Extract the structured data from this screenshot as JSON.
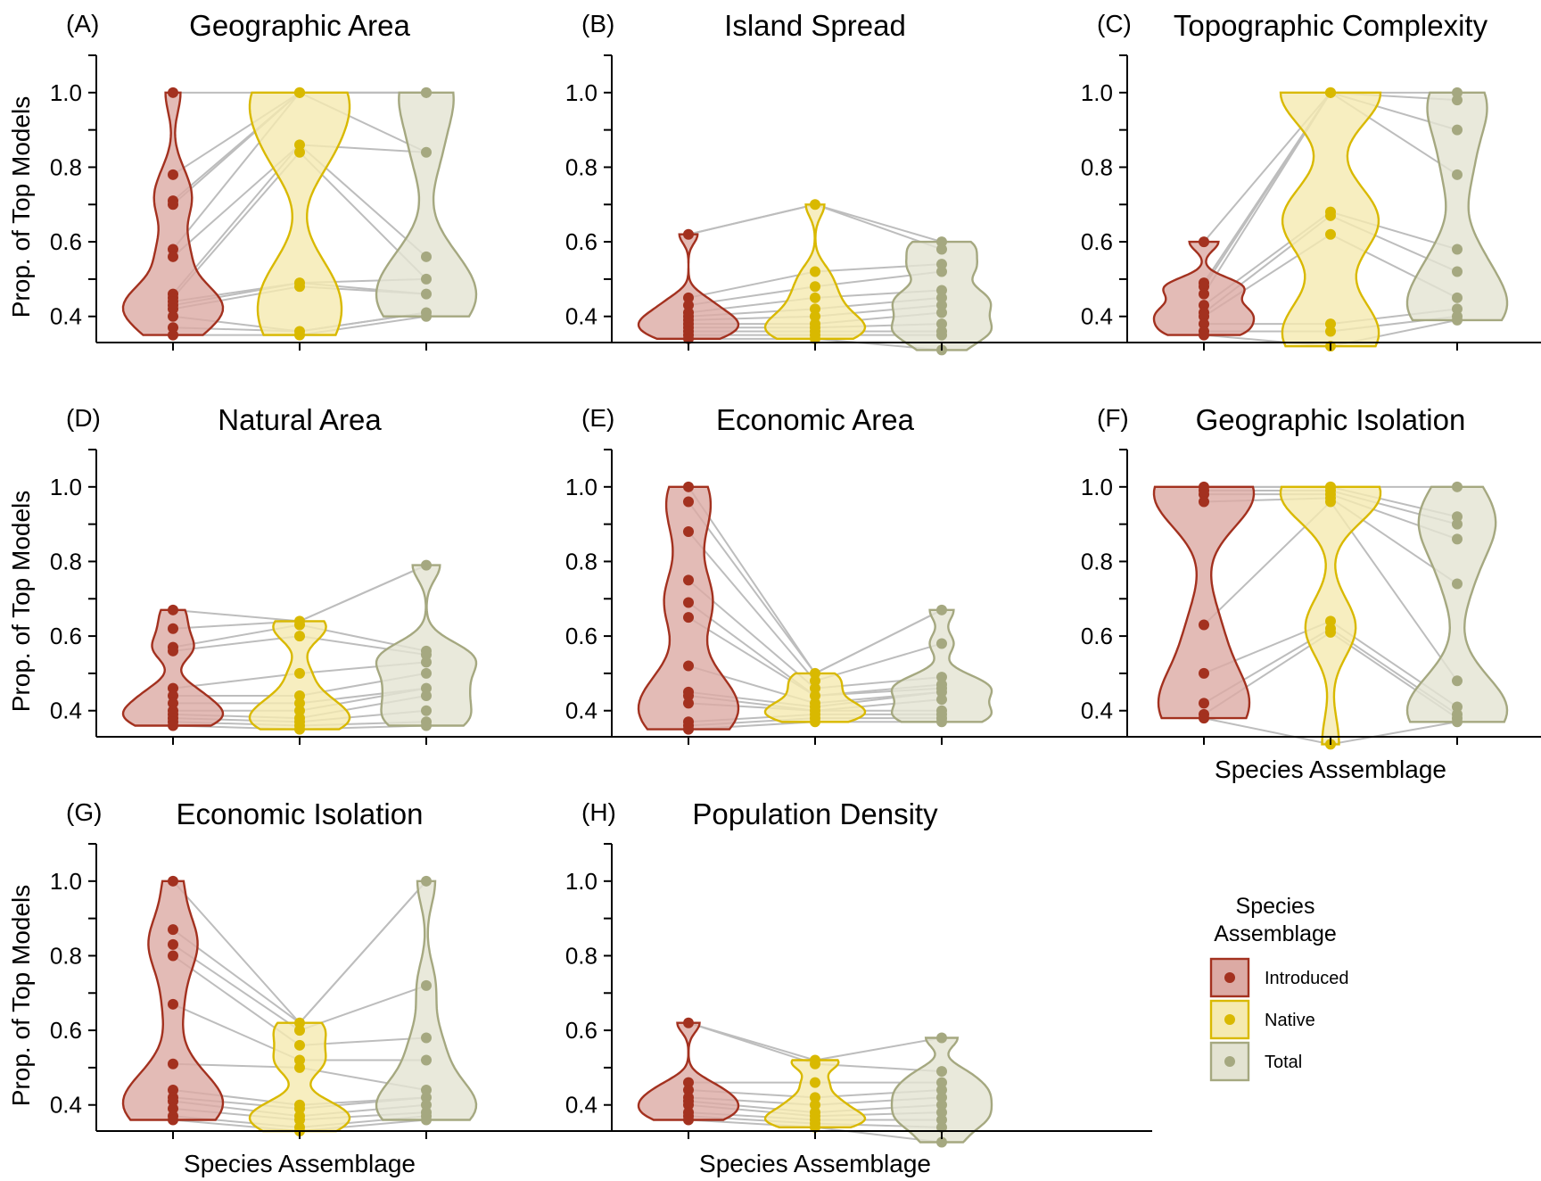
{
  "chart_data": [
    {
      "type": "violin",
      "letter": "(A)",
      "title": "Geographic Area",
      "ylabel": "Prop. of Top Models",
      "xlabel": "",
      "ylim": [
        0.33,
        1.1
      ],
      "yticks": [
        0.4,
        0.6,
        0.8,
        1.0
      ],
      "series": [
        {
          "name": "Introduced",
          "values": [
            1.0,
            0.78,
            0.71,
            0.7,
            0.58,
            0.56,
            0.46,
            0.45,
            0.44,
            0.43,
            0.42,
            0.4,
            0.37,
            0.35
          ]
        },
        {
          "name": "Native",
          "values": [
            1.0,
            1.0,
            1.0,
            0.86,
            0.84,
            0.49,
            0.48,
            0.36,
            0.35
          ]
        },
        {
          "name": "Total",
          "values": [
            1.0,
            1.0,
            0.84,
            0.56,
            0.5,
            0.46,
            0.41,
            0.4
          ]
        }
      ]
    },
    {
      "type": "violin",
      "letter": "(B)",
      "title": "Island Spread",
      "ylabel": "",
      "xlabel": "",
      "ylim": [
        0.33,
        1.1
      ],
      "yticks": [
        0.4,
        0.6,
        0.8,
        1.0
      ],
      "series": [
        {
          "name": "Introduced",
          "values": [
            0.62,
            0.45,
            0.43,
            0.41,
            0.4,
            0.39,
            0.38,
            0.37,
            0.36,
            0.35,
            0.34
          ]
        },
        {
          "name": "Native",
          "values": [
            0.7,
            0.52,
            0.48,
            0.45,
            0.42,
            0.4,
            0.38,
            0.37,
            0.36,
            0.35,
            0.34
          ]
        },
        {
          "name": "Total",
          "values": [
            0.6,
            0.58,
            0.54,
            0.52,
            0.47,
            0.45,
            0.43,
            0.41,
            0.38,
            0.36,
            0.35,
            0.31
          ]
        }
      ]
    },
    {
      "type": "violin",
      "letter": "(C)",
      "title": "Topographic Complexity",
      "ylabel": "",
      "xlabel": "",
      "ylim": [
        0.33,
        1.1
      ],
      "yticks": [
        0.4,
        0.6,
        0.8,
        1.0
      ],
      "series": [
        {
          "name": "Introduced",
          "values": [
            0.6,
            0.49,
            0.48,
            0.46,
            0.43,
            0.41,
            0.4,
            0.38,
            0.36,
            0.35
          ]
        },
        {
          "name": "Native",
          "values": [
            1.0,
            1.0,
            1.0,
            0.68,
            0.67,
            0.62,
            0.38,
            0.36,
            0.32
          ]
        },
        {
          "name": "Total",
          "values": [
            1.0,
            0.98,
            0.9,
            0.78,
            0.58,
            0.52,
            0.45,
            0.42,
            0.4,
            0.39
          ]
        }
      ]
    },
    {
      "type": "violin",
      "letter": "(D)",
      "title": "Natural Area",
      "ylabel": "Prop. of Top Models",
      "xlabel": "",
      "ylim": [
        0.33,
        1.1
      ],
      "yticks": [
        0.4,
        0.6,
        0.8,
        1.0
      ],
      "series": [
        {
          "name": "Introduced",
          "values": [
            0.67,
            0.62,
            0.57,
            0.56,
            0.46,
            0.44,
            0.42,
            0.4,
            0.39,
            0.38,
            0.37,
            0.36
          ]
        },
        {
          "name": "Native",
          "values": [
            0.64,
            0.63,
            0.6,
            0.5,
            0.44,
            0.42,
            0.4,
            0.38,
            0.37,
            0.36,
            0.35
          ]
        },
        {
          "name": "Total",
          "values": [
            0.79,
            0.56,
            0.55,
            0.53,
            0.5,
            0.46,
            0.44,
            0.4,
            0.37,
            0.36
          ]
        }
      ]
    },
    {
      "type": "violin",
      "letter": "(E)",
      "title": "Economic Area",
      "ylabel": "",
      "xlabel": "",
      "ylim": [
        0.33,
        1.1
      ],
      "yticks": [
        0.4,
        0.6,
        0.8,
        1.0
      ],
      "series": [
        {
          "name": "Introduced",
          "values": [
            1.0,
            0.96,
            0.88,
            0.75,
            0.69,
            0.65,
            0.52,
            0.45,
            0.44,
            0.42,
            0.37,
            0.36,
            0.35
          ]
        },
        {
          "name": "Native",
          "values": [
            0.5,
            0.48,
            0.46,
            0.44,
            0.42,
            0.41,
            0.4,
            0.39,
            0.38,
            0.37
          ]
        },
        {
          "name": "Total",
          "values": [
            0.67,
            0.58,
            0.49,
            0.47,
            0.46,
            0.45,
            0.43,
            0.4,
            0.39,
            0.38,
            0.37
          ]
        }
      ]
    },
    {
      "type": "violin",
      "letter": "(F)",
      "title": "Geographic Isolation",
      "ylabel": "",
      "xlabel": "Species Assemblage",
      "ylim": [
        0.33,
        1.1
      ],
      "yticks": [
        0.4,
        0.6,
        0.8,
        1.0
      ],
      "series": [
        {
          "name": "Introduced",
          "values": [
            1.0,
            0.99,
            0.98,
            0.96,
            0.63,
            0.5,
            0.42,
            0.39,
            0.38
          ]
        },
        {
          "name": "Native",
          "values": [
            1.0,
            1.0,
            0.99,
            0.98,
            0.97,
            0.96,
            0.64,
            0.62,
            0.61,
            0.31
          ]
        },
        {
          "name": "Total",
          "values": [
            1.0,
            0.92,
            0.9,
            0.86,
            0.74,
            0.48,
            0.41,
            0.39,
            0.38,
            0.37
          ]
        }
      ]
    },
    {
      "type": "violin",
      "letter": "(G)",
      "title": "Economic Isolation",
      "ylabel": "Prop. of Top Models",
      "xlabel": "Species Assemblage",
      "ylim": [
        0.33,
        1.1
      ],
      "yticks": [
        0.4,
        0.6,
        0.8,
        1.0
      ],
      "series": [
        {
          "name": "Introduced",
          "values": [
            1.0,
            0.87,
            0.83,
            0.8,
            0.67,
            0.51,
            0.44,
            0.42,
            0.41,
            0.39,
            0.37,
            0.36
          ]
        },
        {
          "name": "Native",
          "values": [
            0.62,
            0.6,
            0.56,
            0.52,
            0.5,
            0.4,
            0.39,
            0.37,
            0.36,
            0.34,
            0.33
          ]
        },
        {
          "name": "Total",
          "values": [
            1.0,
            0.72,
            0.58,
            0.52,
            0.44,
            0.42,
            0.4,
            0.38,
            0.37,
            0.36
          ]
        }
      ]
    },
    {
      "type": "violin",
      "letter": "(H)",
      "title": "Population Density",
      "ylabel": "",
      "xlabel": "Species Assemblage",
      "ylim": [
        0.33,
        1.1
      ],
      "yticks": [
        0.4,
        0.6,
        0.8,
        1.0
      ],
      "series": [
        {
          "name": "Introduced",
          "values": [
            0.62,
            0.46,
            0.44,
            0.42,
            0.41,
            0.4,
            0.38,
            0.37,
            0.36
          ]
        },
        {
          "name": "Native",
          "values": [
            0.52,
            0.51,
            0.46,
            0.42,
            0.4,
            0.38,
            0.37,
            0.36,
            0.35,
            0.34
          ]
        },
        {
          "name": "Total",
          "values": [
            0.58,
            0.49,
            0.46,
            0.44,
            0.42,
            0.4,
            0.38,
            0.36,
            0.34,
            0.3
          ]
        }
      ]
    }
  ],
  "legend": {
    "title_line1": "Species",
    "title_line2": "Assemblage",
    "items": [
      {
        "label": "Introduced",
        "fill": "#dcaaa4",
        "stroke": "#a3311f"
      },
      {
        "label": "Native",
        "fill": "#f5eab0",
        "stroke": "#d9b900"
      },
      {
        "label": "Total",
        "fill": "#e3e3d2",
        "stroke": "#a5a880"
      }
    ],
    "placement": "bottom-right"
  },
  "colors": {
    "pair_lines": "#bdbdbd",
    "axis": "#000000"
  }
}
